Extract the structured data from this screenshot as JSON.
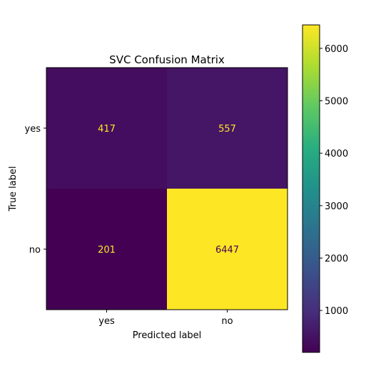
{
  "chart_data": {
    "type": "heatmap",
    "title": "SVC Confusion Matrix",
    "xlabel": "Predicted label",
    "ylabel": "True label",
    "x_categories": [
      "yes",
      "no"
    ],
    "y_categories": [
      "yes",
      "no"
    ],
    "values": [
      [
        417,
        557
      ],
      [
        201,
        6447
      ]
    ],
    "colormap": "viridis",
    "colorbar": {
      "range": [
        201,
        6447
      ],
      "ticks": [
        1000,
        2000,
        3000,
        4000,
        5000,
        6000
      ]
    },
    "grid": false
  }
}
